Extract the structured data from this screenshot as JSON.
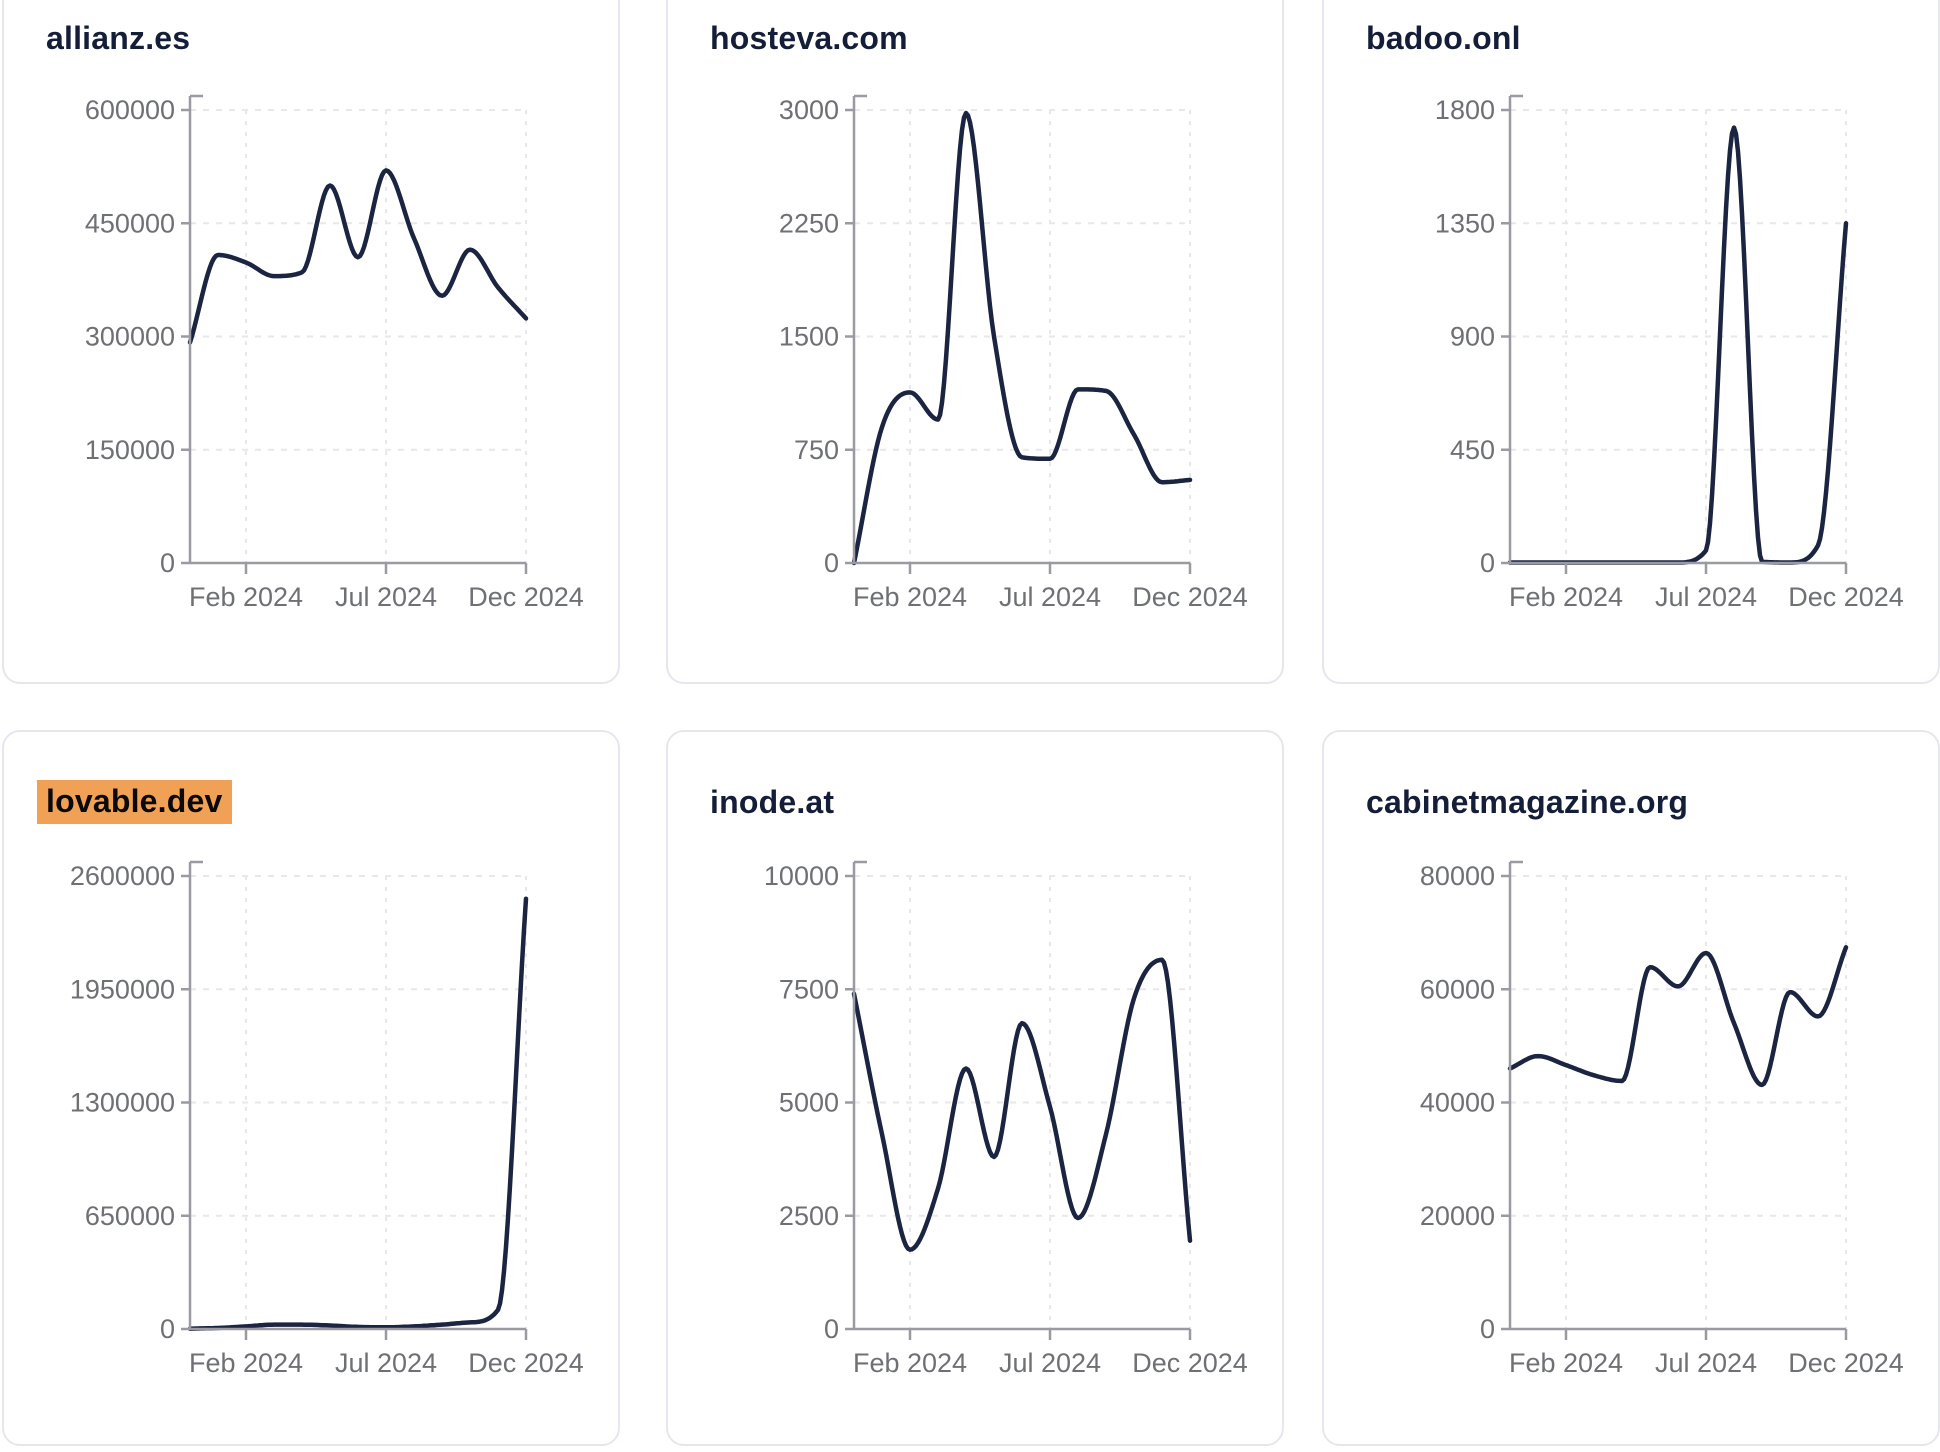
{
  "page": {
    "background": "#ffffff"
  },
  "colors": {
    "line": "#1b2440",
    "title_text": "#141e38",
    "tick_text": "#6e7076",
    "axis": "#9a9aa2",
    "grid": "#e7e7ec",
    "card_border": "#e6e6f0",
    "title_highlight": "#F0A155",
    "highlight_text": "#0a0a0a"
  },
  "x_axis": {
    "tick_labels": [
      "Feb 2024",
      "Jul 2024",
      "Dec 2024"
    ],
    "tick_month_indices": [
      2,
      7,
      12
    ]
  },
  "chart_data": [
    {
      "type": "line",
      "title": "allianz.es",
      "title_highlighted": false,
      "x": [
        "2023-12",
        "2024-01",
        "2024-02",
        "2024-03",
        "2024-04",
        "2024-05",
        "2024-06",
        "2024-07",
        "2024-08",
        "2024-09",
        "2024-10",
        "2024-11",
        "2024-12"
      ],
      "values": [
        292000,
        408000,
        398000,
        380000,
        385000,
        500000,
        405000,
        520000,
        430000,
        354000,
        415000,
        365000,
        324000
      ],
      "ylim": [
        0,
        600000
      ],
      "y_ticks": [
        600000,
        450000,
        300000,
        150000,
        0
      ],
      "x_tick_labels": [
        "Feb 2024",
        "Jul 2024",
        "Dec 2024"
      ],
      "grid": true,
      "legend": "none"
    },
    {
      "type": "line",
      "title": "hosteva.com",
      "title_highlighted": false,
      "x": [
        "2023-12",
        "2024-01",
        "2024-02",
        "2024-03",
        "2024-04",
        "2024-05",
        "2024-06",
        "2024-07",
        "2024-08",
        "2024-09",
        "2024-10",
        "2024-11",
        "2024-12"
      ],
      "values": [
        0,
        900,
        1130,
        950,
        2980,
        1500,
        700,
        690,
        1150,
        1140,
        850,
        535,
        550
      ],
      "ylim": [
        0,
        3000
      ],
      "y_ticks": [
        3000,
        2250,
        1500,
        750,
        0
      ],
      "x_tick_labels": [
        "Feb 2024",
        "Jul 2024",
        "Dec 2024"
      ],
      "grid": true,
      "legend": "none"
    },
    {
      "type": "line",
      "title": "badoo.onl",
      "title_highlighted": false,
      "x": [
        "2023-12",
        "2024-01",
        "2024-02",
        "2024-03",
        "2024-04",
        "2024-05",
        "2024-06",
        "2024-07",
        "2024-08",
        "2024-09",
        "2024-10",
        "2024-11",
        "2024-12"
      ],
      "values": [
        2,
        2,
        2,
        2,
        2,
        2,
        2,
        50,
        1730,
        5,
        2,
        70,
        1350
      ],
      "ylim": [
        0,
        1800
      ],
      "y_ticks": [
        1800,
        1350,
        900,
        450,
        0
      ],
      "x_tick_labels": [
        "Feb 2024",
        "Jul 2024",
        "Dec 2024"
      ],
      "grid": true,
      "legend": "none"
    },
    {
      "type": "line",
      "title": "lovable.dev",
      "title_highlighted": true,
      "x": [
        "2023-12",
        "2024-01",
        "2024-02",
        "2024-03",
        "2024-04",
        "2024-05",
        "2024-06",
        "2024-07",
        "2024-08",
        "2024-09",
        "2024-10",
        "2024-11",
        "2024-12"
      ],
      "values": [
        2000,
        6000,
        15000,
        25000,
        25000,
        20000,
        12000,
        10000,
        15000,
        25000,
        38000,
        110000,
        2470000
      ],
      "ylim": [
        0,
        2600000
      ],
      "y_ticks": [
        2600000,
        1950000,
        1300000,
        650000,
        0
      ],
      "x_tick_labels": [
        "Feb 2024",
        "Jul 2024",
        "Dec 2024"
      ],
      "grid": true,
      "legend": "none"
    },
    {
      "type": "line",
      "title": "inode.at",
      "title_highlighted": false,
      "x": [
        "2023-12",
        "2024-01",
        "2024-02",
        "2024-03",
        "2024-04",
        "2024-05",
        "2024-06",
        "2024-07",
        "2024-08",
        "2024-09",
        "2024-10",
        "2024-11",
        "2024-12"
      ],
      "values": [
        7400,
        4300,
        1750,
        3100,
        5750,
        3800,
        6750,
        4900,
        2450,
        4300,
        7300,
        8150,
        1950
      ],
      "ylim": [
        0,
        10000
      ],
      "y_ticks": [
        10000,
        7500,
        5000,
        2500,
        0
      ],
      "x_tick_labels": [
        "Feb 2024",
        "Jul 2024",
        "Dec 2024"
      ],
      "grid": true,
      "legend": "none"
    },
    {
      "type": "line",
      "title": "cabinetmagazine.org",
      "title_highlighted": false,
      "x": [
        "2023-12",
        "2024-01",
        "2024-02",
        "2024-03",
        "2024-04",
        "2024-05",
        "2024-06",
        "2024-07",
        "2024-08",
        "2024-09",
        "2024-10",
        "2024-11",
        "2024-12"
      ],
      "values": [
        46000,
        48200,
        46600,
        44800,
        43800,
        63900,
        60500,
        66400,
        54000,
        43100,
        59500,
        55200,
        67400
      ],
      "ylim": [
        0,
        80000
      ],
      "y_ticks": [
        80000,
        60000,
        40000,
        20000,
        0
      ],
      "x_tick_labels": [
        "Feb 2024",
        "Jul 2024",
        "Dec 2024"
      ],
      "grid": true,
      "legend": "none"
    }
  ]
}
